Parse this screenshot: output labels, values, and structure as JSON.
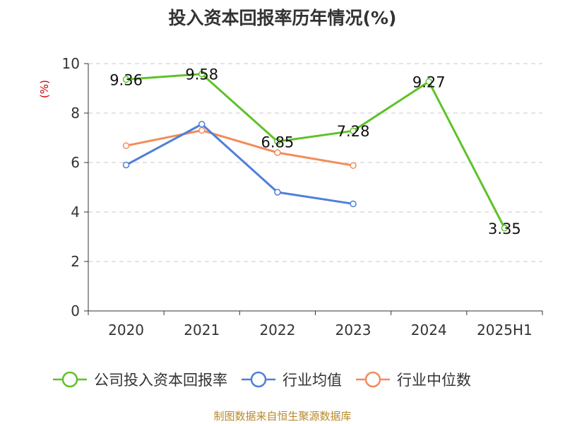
{
  "chart_data": {
    "type": "line",
    "title": "投入资本回报率历年情况(%)",
    "ylabel": "(%)",
    "categories": [
      "2020",
      "2021",
      "2022",
      "2023",
      "2024",
      "2025H1"
    ],
    "ylim": [
      0,
      10
    ],
    "yticks": [
      0,
      2,
      4,
      6,
      8,
      10
    ],
    "grid": "horizontal-dashed",
    "legend_position": "bottom",
    "series": [
      {
        "name": "公司投入资本回报率",
        "color": "#5ec229",
        "values": [
          9.36,
          9.58,
          6.85,
          7.28,
          9.27,
          3.35
        ],
        "labels": [
          "9.36",
          "9.58",
          "6.85",
          "7.28",
          "9.27",
          "3.35"
        ]
      },
      {
        "name": "行业均值",
        "color": "#4f7fd9",
        "values": [
          5.9,
          7.55,
          4.8,
          4.33,
          null,
          null
        ]
      },
      {
        "name": "行业中位数",
        "color": "#f28c5a",
        "values": [
          6.68,
          7.3,
          6.4,
          5.88,
          null,
          null
        ]
      }
    ]
  },
  "footer": {
    "source": "制图数据来自恒生聚源数据库"
  }
}
